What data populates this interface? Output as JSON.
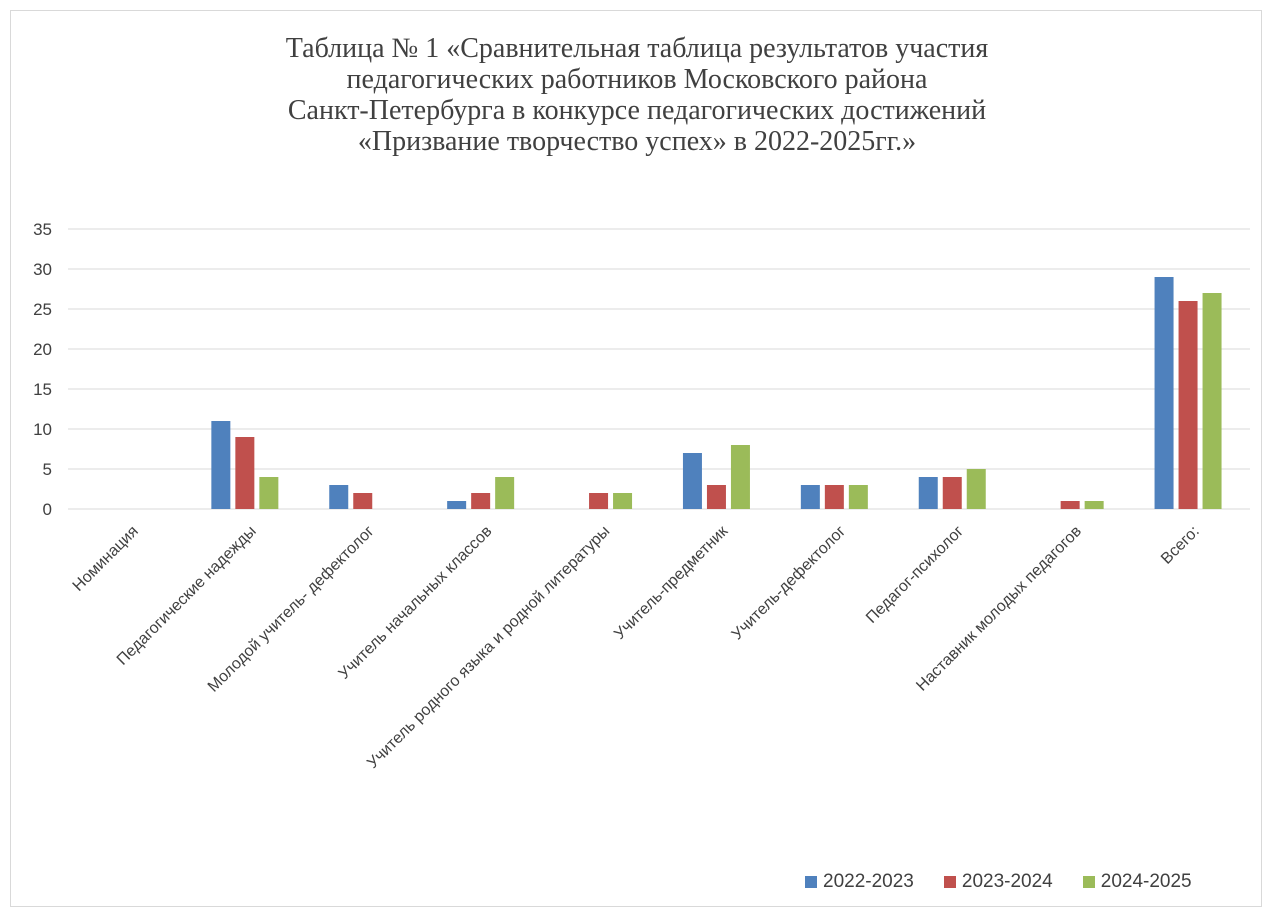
{
  "chart_data": {
    "type": "bar",
    "title_lines": [
      "Таблица № 1 «Сравнительная таблица результатов участия",
      "педагогических работников  Московского района",
      "Санкт-Петербурга в конкурсе педагогических достижений",
      "«Призвание творчество успех» в 2022-2025гг.»"
    ],
    "categories": [
      "Номинация",
      "Педагогические надежды",
      "Молодой учитель- дефектолог",
      "Учитель начальных классов",
      "Учитель родного языка и родной литературы",
      "Учитель-предметник",
      "Учитель-дефектолог",
      "Педагог-психолог",
      "Наставник молодых педагогов",
      "Всего:"
    ],
    "series": [
      {
        "name": "2022-2023",
        "color": "#4f81bd",
        "values": [
          null,
          11,
          3,
          1,
          null,
          7,
          3,
          4,
          null,
          29
        ]
      },
      {
        "name": "2023-2024",
        "color": "#c0504d",
        "values": [
          null,
          9,
          2,
          2,
          2,
          3,
          3,
          4,
          1,
          26
        ]
      },
      {
        "name": "2024-2025",
        "color": "#9bbb59",
        "values": [
          null,
          4,
          null,
          4,
          2,
          8,
          3,
          5,
          1,
          27
        ]
      }
    ],
    "yticks": [
      "0",
      "5",
      "10",
      "15",
      "20",
      "25",
      "30",
      "35"
    ],
    "ylim": [
      0,
      35
    ],
    "grid": true,
    "legend_position": "bottom-right"
  }
}
